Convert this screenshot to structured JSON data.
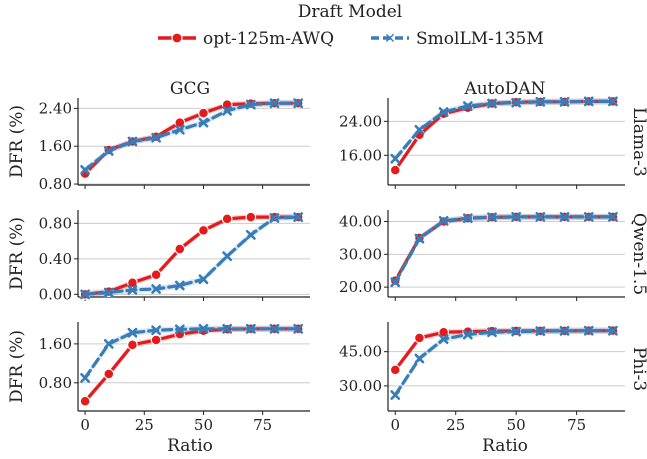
{
  "chart_data": {
    "type": "line",
    "legend": {
      "title": "Draft Model",
      "placement": "top-center",
      "entries": [
        {
          "name": "opt-125m-AWQ",
          "color": "#e41a1c",
          "marker": "circle",
          "dash": "solid"
        },
        {
          "name": "SmolLM-135M",
          "color": "#377eb8",
          "marker": "x",
          "dash": "dashed"
        }
      ]
    },
    "column_titles": [
      "GCG",
      "AutoDAN"
    ],
    "row_labels": [
      "Llama-3",
      "Qwen-1.5",
      "Phi-3"
    ],
    "xlabel": "Ratio",
    "ylabel": "DFR (%)",
    "x": [
      0,
      10,
      20,
      30,
      40,
      50,
      60,
      70,
      80,
      90
    ],
    "xticks": [
      "0",
      "25",
      "50",
      "75"
    ],
    "xlim": [
      -3,
      95
    ],
    "grid": "horizontal",
    "panels": [
      {
        "row": 0,
        "col": 0,
        "ylim": [
          0.78,
          2.62
        ],
        "yticks": [
          "0.80",
          "1.60",
          "2.40"
        ],
        "series": [
          {
            "name": "opt-125m-AWQ",
            "values": [
              1.02,
              1.52,
              1.7,
              1.8,
              2.1,
              2.3,
              2.48,
              2.5,
              2.51,
              2.51
            ]
          },
          {
            "name": "SmolLM-135M",
            "values": [
              1.1,
              1.5,
              1.7,
              1.78,
              1.95,
              2.1,
              2.35,
              2.48,
              2.51,
              2.51
            ]
          }
        ]
      },
      {
        "row": 0,
        "col": 1,
        "ylim": [
          9.0,
          29.5
        ],
        "yticks": [
          "16.00",
          "24.00"
        ],
        "series": [
          {
            "name": "opt-125m-AWQ",
            "values": [
              12.5,
              20.8,
              25.8,
              27.2,
              28.2,
              28.5,
              28.6,
              28.6,
              28.7,
              28.7
            ]
          },
          {
            "name": "SmolLM-135M",
            "values": [
              15.2,
              22.0,
              26.2,
              27.6,
              28.2,
              28.4,
              28.6,
              28.6,
              28.7,
              28.7
            ]
          }
        ]
      },
      {
        "row": 1,
        "col": 0,
        "ylim": [
          -0.03,
          0.95
        ],
        "yticks": [
          "0.00",
          "0.40",
          "0.80"
        ],
        "series": [
          {
            "name": "opt-125m-AWQ",
            "values": [
              0.0,
              0.03,
              0.13,
              0.22,
              0.51,
              0.72,
              0.85,
              0.87,
              0.87,
              0.87
            ]
          },
          {
            "name": "SmolLM-135M",
            "values": [
              0.0,
              0.02,
              0.05,
              0.06,
              0.1,
              0.17,
              0.43,
              0.67,
              0.86,
              0.87
            ]
          }
        ]
      },
      {
        "row": 1,
        "col": 1,
        "ylim": [
          17.0,
          43.5
        ],
        "yticks": [
          "20.00",
          "30.00",
          "40.00"
        ],
        "series": [
          {
            "name": "opt-125m-AWQ",
            "values": [
              22.0,
              35.0,
              40.0,
              41.0,
              41.3,
              41.4,
              41.4,
              41.4,
              41.4,
              41.4
            ]
          },
          {
            "name": "SmolLM-135M",
            "values": [
              21.5,
              34.8,
              40.2,
              41.0,
              41.3,
              41.4,
              41.4,
              41.4,
              41.4,
              41.4
            ]
          }
        ]
      },
      {
        "row": 2,
        "col": 0,
        "ylim": [
          0.22,
          2.05
        ],
        "yticks": [
          "0.80",
          "1.60"
        ],
        "series": [
          {
            "name": "opt-125m-AWQ",
            "values": [
              0.42,
              0.98,
              1.58,
              1.68,
              1.8,
              1.87,
              1.9,
              1.91,
              1.91,
              1.91
            ]
          },
          {
            "name": "SmolLM-135M",
            "values": [
              0.9,
              1.6,
              1.83,
              1.88,
              1.9,
              1.91,
              1.91,
              1.91,
              1.91,
              1.91
            ]
          }
        ]
      },
      {
        "row": 2,
        "col": 1,
        "ylim": [
          19.0,
          58.0
        ],
        "yticks": [
          "30.00",
          "45.00"
        ],
        "series": [
          {
            "name": "opt-125m-AWQ",
            "values": [
              37.0,
              51.0,
              53.5,
              53.8,
              54.0,
              54.1,
              54.1,
              54.1,
              54.2,
              54.2
            ]
          },
          {
            "name": "SmolLM-135M",
            "values": [
              26.0,
              42.0,
              50.5,
              52.5,
              53.5,
              53.8,
              54.0,
              54.1,
              54.2,
              54.2
            ]
          }
        ]
      }
    ]
  }
}
